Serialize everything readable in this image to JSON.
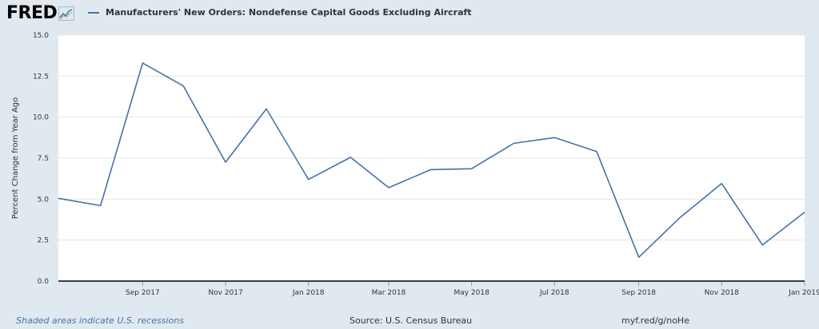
{
  "header": {
    "logo_text": "FRED",
    "logo_icon": "mini-line-graph-icon",
    "legend_label": "Manufacturers' New Orders: Nondefense Capital Goods Excluding Aircraft"
  },
  "footer": {
    "recessions_note": "Shaded areas indicate U.S. recessions",
    "source": "Source: U.S. Census Bureau",
    "short_url": "myf.red/g/noHe"
  },
  "colors": {
    "series_line": "#4572a7",
    "plot_background": "#ffffff",
    "page_background": "#e1e9f0",
    "gridline": "#e6e6e6",
    "baseline": "#000000"
  },
  "chart_data": {
    "type": "line",
    "title": "",
    "xlabel": "",
    "ylabel": "Percent Change from Year Ago",
    "ylim": [
      0,
      15
    ],
    "yticks": [
      0.0,
      2.5,
      5.0,
      7.5,
      10.0,
      12.5,
      15.0
    ],
    "ytick_labels": [
      "0.0",
      "2.5",
      "5.0",
      "7.5",
      "10.0",
      "12.5",
      "15.0"
    ],
    "xlim": [
      "2017-07-01",
      "2019-01-01"
    ],
    "xticks": [
      {
        "date": "2017-09-01",
        "label": "Sep 2017"
      },
      {
        "date": "2017-11-01",
        "label": "Nov 2017"
      },
      {
        "date": "2018-01-01",
        "label": "Jan 2018"
      },
      {
        "date": "2018-03-01",
        "label": "Mar 2018"
      },
      {
        "date": "2018-05-01",
        "label": "May 2018"
      },
      {
        "date": "2018-07-01",
        "label": "Jul 2018"
      },
      {
        "date": "2018-09-01",
        "label": "Sep 2018"
      },
      {
        "date": "2018-11-01",
        "label": "Nov 2018"
      },
      {
        "date": "2019-01-01",
        "label": "Jan 2019"
      }
    ],
    "grid": true,
    "legend": "top-left",
    "series": [
      {
        "name": "Manufacturers' New Orders: Nondefense Capital Goods Excluding Aircraft",
        "color": "#4572a7",
        "x": [
          "2017-07-01",
          "2017-08-01",
          "2017-09-01",
          "2017-10-01",
          "2017-11-01",
          "2017-12-01",
          "2018-01-01",
          "2018-02-01",
          "2018-03-01",
          "2018-04-01",
          "2018-05-01",
          "2018-06-01",
          "2018-07-01",
          "2018-08-01",
          "2018-09-01",
          "2018-10-01",
          "2018-11-01",
          "2018-12-01",
          "2019-01-01"
        ],
        "y": [
          5.05,
          4.6,
          13.3,
          11.9,
          7.25,
          10.5,
          6.2,
          7.55,
          5.7,
          6.8,
          6.85,
          8.4,
          8.75,
          7.9,
          1.45,
          3.85,
          5.95,
          2.2,
          4.2
        ]
      }
    ]
  }
}
